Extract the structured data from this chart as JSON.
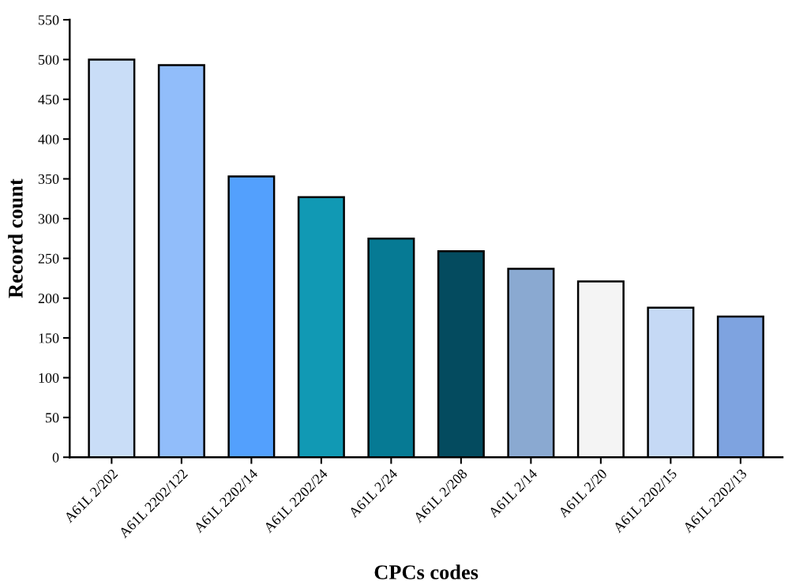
{
  "chart_data": {
    "type": "bar",
    "xlabel": "CPCs codes",
    "ylabel": "Record count",
    "categories": [
      "A61L 2/202",
      "A61L 2202/122",
      "A61L 2202/14",
      "A61L 2202/24",
      "A61L 2/24",
      "A61L 2/208",
      "A61L 2/14",
      "A61L 2/20",
      "A61L 2202/15",
      "A61L 2202/13"
    ],
    "values": [
      500,
      493,
      353,
      327,
      275,
      259,
      237,
      221,
      188,
      177
    ],
    "colors": [
      "#c9ddf7",
      "#91bdfa",
      "#53a0fd",
      "#1199b4",
      "#067a94",
      "#044b5f",
      "#8aa9d1",
      "#f4f4f4",
      "#c5d9f5",
      "#7ea3e0"
    ],
    "ylim": [
      0,
      550
    ],
    "yticks": [
      0,
      50,
      100,
      150,
      200,
      250,
      300,
      350,
      400,
      450,
      500,
      550
    ],
    "grid": false,
    "legend": false
  }
}
